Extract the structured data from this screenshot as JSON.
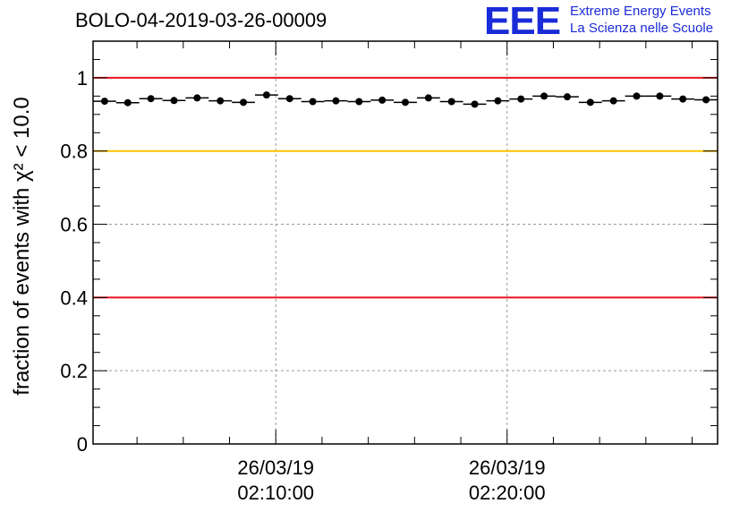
{
  "header": {
    "title": "BOLO-04-2019-03-26-00009",
    "logo_mark": "EEE",
    "logo_line1": "Extreme Energy Events",
    "logo_line2": "La Scienza nelle Scuole"
  },
  "chart_data": {
    "type": "scatter",
    "title": "BOLO-04-2019-03-26-00009",
    "ylabel": "fraction of events with χ² < 10.0",
    "xlabel": "",
    "ylim": [
      0,
      1.1
    ],
    "yticks": [
      0,
      0.2,
      0.4,
      0.6,
      0.8,
      1
    ],
    "ytick_labels": [
      "0",
      "0.2",
      "0.4",
      "0.6",
      "0.8",
      "1"
    ],
    "x_unit": "minutes after 26/03/19 02:00:00",
    "xlim": [
      2.1,
      29.1
    ],
    "xticks": [
      {
        "x": 10,
        "date": "26/03/19",
        "time": "02:10:00"
      },
      {
        "x": 20,
        "date": "26/03/19",
        "time": "02:20:00"
      }
    ],
    "grid": true,
    "reference_lines": [
      {
        "y": 1.0,
        "color": "#e8141e"
      },
      {
        "y": 0.8,
        "color": "#ffc200"
      },
      {
        "y": 0.4,
        "color": "#e8141e"
      }
    ],
    "bin_width": 1,
    "series": [
      {
        "x": [
          2.6,
          3.6,
          4.6,
          5.6,
          6.6,
          7.6,
          8.6,
          9.6,
          10.6,
          11.6,
          12.6,
          13.6,
          14.6,
          15.6,
          16.6,
          17.6,
          18.6,
          19.6,
          20.6,
          21.6,
          22.6,
          23.6,
          24.6,
          25.6,
          26.6,
          27.6,
          28.6
        ],
        "y": [
          0.936,
          0.932,
          0.943,
          0.938,
          0.945,
          0.937,
          0.933,
          0.953,
          0.943,
          0.935,
          0.937,
          0.935,
          0.939,
          0.933,
          0.945,
          0.935,
          0.928,
          0.937,
          0.942,
          0.95,
          0.948,
          0.933,
          0.937,
          0.95,
          0.95,
          0.942,
          0.94
        ]
      }
    ]
  }
}
